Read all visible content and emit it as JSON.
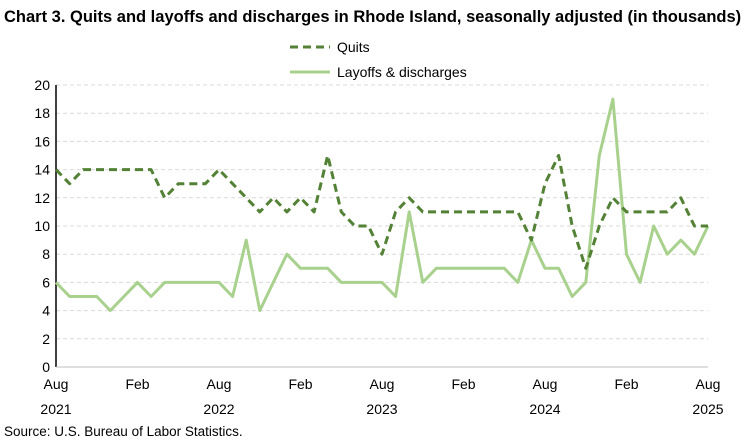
{
  "title": "Chart 3. Quits and layoffs and discharges in Rhode Island, seasonally adjusted (in thousands)",
  "source": "Source: U.S. Bureau of Labor Statistics.",
  "colors": {
    "quits": "#538135",
    "layoffs": "#a9d18e",
    "grid": "#d9d9d9"
  },
  "chart_data": {
    "type": "line",
    "title": "Chart 3. Quits and layoffs and discharges in Rhode Island, seasonally adjusted (in thousands)",
    "x_start": "Aug 2021",
    "x_end": "Aug 2025",
    "x_tick_labels": [
      {
        "month_index": 0,
        "label": "Aug",
        "year": "2021"
      },
      {
        "month_index": 6,
        "label": "Feb",
        "year": ""
      },
      {
        "month_index": 12,
        "label": "Aug",
        "year": "2022"
      },
      {
        "month_index": 18,
        "label": "Feb",
        "year": ""
      },
      {
        "month_index": 24,
        "label": "Aug",
        "year": "2023"
      },
      {
        "month_index": 30,
        "label": "Feb",
        "year": ""
      },
      {
        "month_index": 36,
        "label": "Aug",
        "year": "2024"
      },
      {
        "month_index": 42,
        "label": "Feb",
        "year": ""
      },
      {
        "month_index": 48,
        "label": "Aug",
        "year": "2025"
      }
    ],
    "ylim": [
      0,
      20
    ],
    "y_ticks": [
      0,
      2,
      4,
      6,
      8,
      10,
      12,
      14,
      16,
      18,
      20
    ],
    "grid": true,
    "legend": "top-center",
    "series": [
      {
        "name": "Quits",
        "style": "dashed",
        "values": [
          14,
          13,
          14,
          14,
          14,
          14,
          14,
          14,
          12,
          13,
          13,
          13,
          14,
          13,
          12,
          11,
          12,
          11,
          12,
          11,
          15,
          11,
          10,
          10,
          8,
          11,
          12,
          11,
          11,
          11,
          11,
          11,
          11,
          11,
          11,
          9,
          13,
          15,
          10,
          7,
          10,
          12,
          11,
          11,
          11,
          11,
          12,
          10,
          10
        ]
      },
      {
        "name": "Layoffs & discharges",
        "style": "solid",
        "values": [
          6,
          5,
          5,
          5,
          4,
          5,
          6,
          5,
          6,
          6,
          6,
          6,
          6,
          5,
          9,
          4,
          6,
          8,
          7,
          7,
          7,
          6,
          6,
          6,
          6,
          5,
          11,
          6,
          7,
          7,
          7,
          7,
          7,
          7,
          6,
          9,
          7,
          7,
          5,
          6,
          15,
          19,
          8,
          6,
          10,
          8,
          9,
          8,
          10
        ]
      }
    ]
  }
}
